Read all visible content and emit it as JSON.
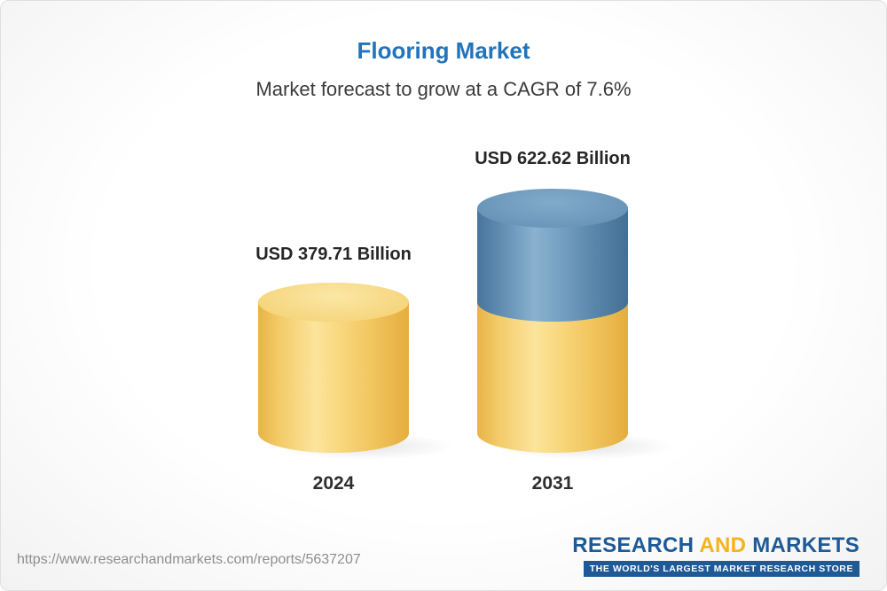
{
  "header": {
    "title": "Flooring Market",
    "subtitle": "Market forecast to grow at a CAGR of 7.6%"
  },
  "chart_data": {
    "type": "bar",
    "bar_style": "3d-cylinder",
    "title": "Flooring Market",
    "subtitle": "Market forecast to grow at a CAGR of 7.6%",
    "unit": "USD Billion",
    "cagr_percent": 7.6,
    "categories": [
      "2024",
      "2031"
    ],
    "values": [
      379.71,
      622.62
    ],
    "value_labels": [
      "USD 379.71 Billion",
      "USD 622.62 Billion"
    ],
    "legend": "none",
    "grid": false,
    "colors": {
      "base_segment": "#f2c961",
      "growth_segment": "#5b8db4"
    },
    "notes": "2031 bar drawn as stacked cylinder: yellow base equal to 2024 value plus blue growth segment on top"
  },
  "footer": {
    "url": "https://www.researchandmarkets.com/reports/5637207",
    "logo": {
      "word1": "RESEARCH",
      "word2": "AND",
      "word3": "MARKETS",
      "tagline": "THE WORLD'S LARGEST MARKET RESEARCH STORE",
      "brand_blue": "#1d5a96",
      "brand_yellow": "#f5b31e"
    }
  }
}
